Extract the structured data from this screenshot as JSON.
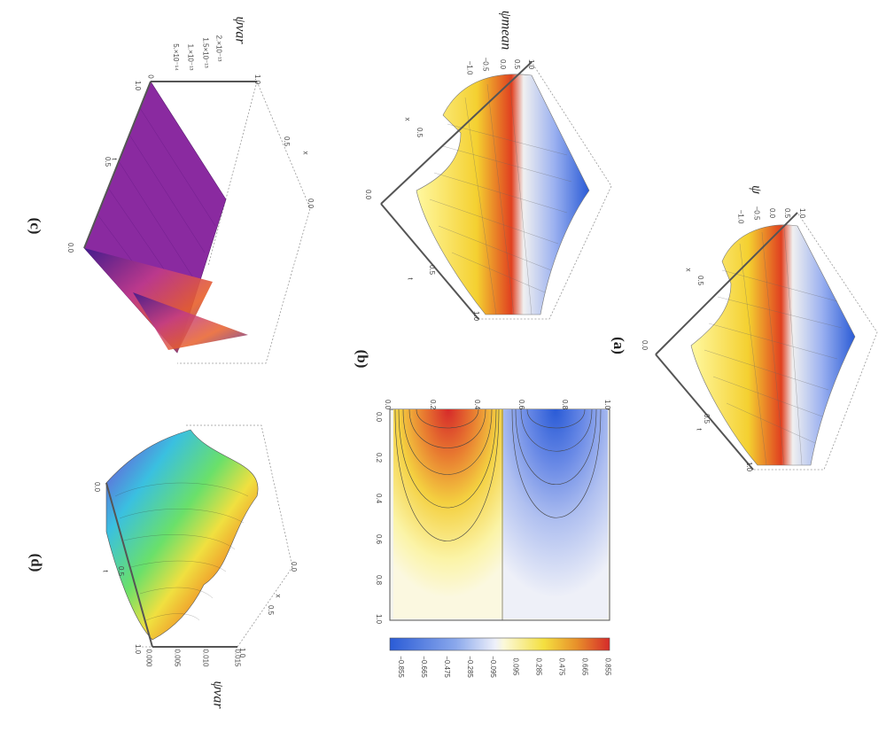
{
  "panels": {
    "a": {
      "label": "(a)",
      "z_axis": "ψ",
      "z_ticks": [
        "1.0",
        "0.5",
        "0.0",
        "−0.5",
        "−1.0"
      ],
      "x_axis": "x",
      "x_ticks": [
        "0.5",
        "0.0"
      ],
      "t_axis": "t",
      "t_ticks": [
        "0.5",
        "1.0"
      ]
    },
    "b": {
      "label": "(b)",
      "z_axis": "ψmean",
      "z_ticks": [
        "1.0",
        "0.5",
        "0.0",
        "−0.5",
        "−1.0"
      ],
      "x_axis": "x",
      "x_ticks": [
        "0.5",
        "0.0"
      ],
      "t_axis": "t",
      "t_ticks": [
        "0.5",
        "1.0"
      ]
    },
    "c": {
      "label": "(c)",
      "z_axis": "ψvar",
      "z_ticks": [
        "2.×10⁻¹³",
        "1.5×10⁻¹³",
        "1.×10⁻¹³",
        "5.×10⁻¹⁴",
        "0"
      ],
      "x_axis": "x",
      "x_ticks": [
        "1.0",
        "0.5",
        "0.0"
      ],
      "t_axis": "t",
      "t_ticks": [
        "1.0",
        "0.5",
        "0.0"
      ]
    },
    "d": {
      "label": "(d)",
      "z_axis": "ψvar",
      "z_ticks": [
        "0.015",
        "0.010",
        "0.005",
        "0.000"
      ],
      "x_axis": "x",
      "x_ticks": [
        "1.0",
        "0.5",
        "0.0"
      ],
      "t_axis": "t",
      "t_ticks": [
        "1.0",
        "0.5",
        "0.0"
      ]
    }
  },
  "contour": {
    "row_ticks": [
      "0.0",
      "0.2",
      "0.4",
      "0.6",
      "0.8",
      "1.0"
    ],
    "col_ticks": [
      "0.0",
      "0.2",
      "0.4",
      "0.6",
      "0.8",
      "1.0"
    ],
    "colorbar_ticks": [
      "0.855",
      "0.665",
      "0.475",
      "0.285",
      "0.095",
      "−0.095",
      "−0.285",
      "−0.475",
      "−0.665",
      "−0.855"
    ]
  },
  "colors": {
    "purple": "#8a2aa0",
    "red": "#d62a2a",
    "blue": "#2a5bd6",
    "yellow": "#f3e86a"
  }
}
